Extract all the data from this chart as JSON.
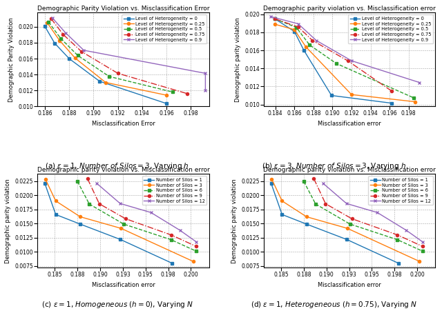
{
  "subplot_a": {
    "title": "Demographic Parity Violation vs. Misclassification Error",
    "xlabel": "Misclassification Error",
    "ylabel": "Demographic Parity Violation",
    "lines": [
      {
        "label": "Level of Heterogeneity = 0",
        "color": "#1f77b4",
        "marker": "s",
        "linestyle": "-",
        "x": [
          0.186,
          0.1868,
          0.188,
          0.1905,
          0.196
        ],
        "y": [
          0.02005,
          0.01795,
          0.016,
          0.01315,
          0.01035
        ]
      },
      {
        "label": "Level of Heterogeneity = 0.25",
        "color": "#ff7f0e",
        "marker": "o",
        "linestyle": "-",
        "x": [
          0.1862,
          0.1872,
          0.1885,
          0.191,
          0.196
        ],
        "y": [
          0.0205,
          0.0183,
          0.01605,
          0.013,
          0.0114
        ]
      },
      {
        "label": "Level of Heterogeneity = 0.5",
        "color": "#2ca02c",
        "marker": "s",
        "linestyle": "--",
        "x": [
          0.1863,
          0.1873,
          0.1887,
          0.1913,
          0.1965
        ],
        "y": [
          0.0206,
          0.01855,
          0.0164,
          0.01375,
          0.0118
        ]
      },
      {
        "label": "Level of Heterogeneity = 0.75",
        "color": "#d62728",
        "marker": "o",
        "linestyle": "-.",
        "x": [
          0.1865,
          0.1875,
          0.189,
          0.192,
          0.1977
        ],
        "y": [
          0.02105,
          0.01905,
          0.0169,
          0.01415,
          0.0116
        ]
      },
      {
        "label": "Level of Heterogeneity = 0.9",
        "color": "#9467bd",
        "marker": "x",
        "linestyle": "-",
        "x": [
          0.1866,
          0.1877,
          0.1892,
          0.1992,
          0.1992
        ],
        "y": [
          0.02115,
          0.01925,
          0.01705,
          0.01415,
          0.012
        ]
      }
    ],
    "xlim": [
      0.1854,
      0.1995
    ],
    "ylim": [
      0.01,
      0.0218
    ],
    "xticks": [
      0.186,
      0.188,
      0.19,
      0.192,
      0.194,
      0.196,
      0.198
    ]
  },
  "subplot_b": {
    "title": "Demographic parity violation vs. Misclassification error",
    "xlabel": "Misclassification error",
    "ylabel": "Demographic parity violation",
    "lines": [
      {
        "label": "Level of Heterogeneity = 0",
        "color": "#1f77b4",
        "marker": "s",
        "linestyle": "-",
        "x": [
          0.18395,
          0.186,
          0.187,
          0.1899,
          0.1962
        ],
        "y": [
          0.0195,
          0.0181,
          0.016,
          0.011,
          0.01015
        ]
      },
      {
        "label": "Level of Heterogeneity = 0.25",
        "color": "#ff7f0e",
        "marker": "o",
        "linestyle": "-",
        "x": [
          0.18395,
          0.186,
          0.1872,
          0.192,
          0.1987
        ],
        "y": [
          0.0189,
          0.0183,
          0.0164,
          0.0111,
          0.0103
        ]
      },
      {
        "label": "Level of Heterogeneity = 0.5",
        "color": "#2ca02c",
        "marker": "s",
        "linestyle": "--",
        "x": [
          0.18395,
          0.1862,
          0.1876,
          0.1904,
          0.1985
        ],
        "y": [
          0.0195,
          0.01855,
          0.0166,
          0.01455,
          0.01075
        ]
      },
      {
        "label": "Level of Heterogeneity = 0.75",
        "color": "#d62728",
        "marker": "o",
        "linestyle": "-.",
        "x": [
          0.18395,
          0.1864,
          0.1879,
          0.1916,
          0.1962
        ],
        "y": [
          0.0195,
          0.0186,
          0.0171,
          0.01485,
          0.0115
        ]
      },
      {
        "label": "Level of Heterogeneity = 0.9",
        "color": "#9467bd",
        "marker": "x",
        "linestyle": "-",
        "x": [
          0.1835,
          0.1864,
          0.1883,
          0.192,
          0.1991
        ],
        "y": [
          0.01975,
          0.01895,
          0.0171,
          0.01485,
          0.01245
        ]
      }
    ],
    "xlim": [
      0.1828,
      0.2008
    ],
    "ylim": [
      0.0098,
      0.0202
    ],
    "xticks": [
      0.184,
      0.186,
      0.188,
      0.19,
      0.192,
      0.194,
      0.196,
      0.198
    ]
  },
  "subplot_c": {
    "title": "Demographic parity violation vs. Misclassification error",
    "xlabel": "Misclassification error",
    "ylabel": "Demographic parity violation",
    "lines": [
      {
        "label": "Number of Silos = 1",
        "color": "#1f77b4",
        "marker": "s",
        "linestyle": "-",
        "x": [
          0.1839,
          0.1851,
          0.1878,
          0.1922,
          0.1979
        ],
        "y": [
          0.0221,
          0.0166,
          0.0149,
          0.0122,
          0.008
        ]
      },
      {
        "label": "Number of Silos = 3",
        "color": "#ff7f0e",
        "marker": "o",
        "linestyle": "-",
        "x": [
          0.18395,
          0.1851,
          0.1878,
          0.1923,
          0.20025
        ],
        "y": [
          0.0229,
          0.019,
          0.0162,
          0.01415,
          0.0083
        ]
      },
      {
        "label": "Number of Silos = 6",
        "color": "#2ca02c",
        "marker": "s",
        "linestyle": "--",
        "x": [
          0.1875,
          0.1888,
          0.1926,
          0.1978,
          0.2006
        ],
        "y": [
          0.02245,
          0.01845,
          0.0149,
          0.01215,
          0.0101
        ]
      },
      {
        "label": "Number of Silos = 9",
        "color": "#d62728",
        "marker": "o",
        "linestyle": "-.",
        "x": [
          0.1886,
          0.1899,
          0.1928,
          0.1978,
          0.2006
        ],
        "y": [
          0.02295,
          0.0185,
          0.01585,
          0.013,
          0.01095
        ]
      },
      {
        "label": "Number of Silos = 12",
        "color": "#9467bd",
        "marker": "x",
        "linestyle": "-",
        "x": [
          0.1896,
          0.1922,
          0.1956,
          0.1988,
          0.2006
        ],
        "y": [
          0.02215,
          0.01855,
          0.01695,
          0.0138,
          0.01175
        ]
      }
    ],
    "xlim": [
      0.1831,
      0.202
    ],
    "ylim": [
      0.0072,
      0.0238
    ],
    "xticks": [
      0.185,
      0.1875,
      0.19,
      0.1925,
      0.195,
      0.1975,
      0.2
    ]
  },
  "subplot_d": {
    "title": "Demographic parity violation vs. Misclassification error",
    "xlabel": "Misclassification error",
    "ylabel": "Demographic parity violation",
    "lines": [
      {
        "label": "Number of Silos = 1",
        "color": "#1f77b4",
        "marker": "s",
        "linestyle": "-",
        "x": [
          0.1839,
          0.1851,
          0.1878,
          0.1922,
          0.1979
        ],
        "y": [
          0.0221,
          0.0166,
          0.0149,
          0.0122,
          0.008
        ]
      },
      {
        "label": "Number of Silos = 3",
        "color": "#ff7f0e",
        "marker": "o",
        "linestyle": "-",
        "x": [
          0.18395,
          0.1851,
          0.1878,
          0.1923,
          0.20025
        ],
        "y": [
          0.0229,
          0.019,
          0.0162,
          0.01415,
          0.0083
        ]
      },
      {
        "label": "Number of Silos = 6",
        "color": "#2ca02c",
        "marker": "s",
        "linestyle": "--",
        "x": [
          0.1875,
          0.1888,
          0.1926,
          0.1978,
          0.2006
        ],
        "y": [
          0.02245,
          0.01845,
          0.0149,
          0.01215,
          0.0101
        ]
      },
      {
        "label": "Number of Silos = 9",
        "color": "#d62728",
        "marker": "o",
        "linestyle": "-.",
        "x": [
          0.1886,
          0.1899,
          0.1928,
          0.1978,
          0.2006
        ],
        "y": [
          0.02295,
          0.0185,
          0.01585,
          0.013,
          0.01095
        ]
      },
      {
        "label": "Number of Silos = 12",
        "color": "#9467bd",
        "marker": "x",
        "linestyle": "-",
        "x": [
          0.1896,
          0.1922,
          0.1956,
          0.1988,
          0.2006
        ],
        "y": [
          0.02215,
          0.01855,
          0.01695,
          0.0138,
          0.01175
        ]
      }
    ],
    "xlim": [
      0.1831,
      0.202
    ],
    "ylim": [
      0.0072,
      0.0238
    ],
    "xticks": [
      0.185,
      0.1875,
      0.19,
      0.1925,
      0.195,
      0.1975,
      0.2
    ]
  },
  "captions": [
    "(a) $\\varepsilon = 1$, $\\it{Number\\ of\\ Silos} = 3$, Varying $h$",
    "(b) $\\varepsilon = 3$, $\\it{Number\\ of\\ Silos} = 3$, Varying $h$",
    "(c) $\\varepsilon = 1$, $\\it{Homogeneous}$ $(h = 0)$, Varying $N$",
    "(d) $\\varepsilon = 1$, $\\it{Heterogeneous}$ $(h = 0.75)$, Varying $N$"
  ]
}
